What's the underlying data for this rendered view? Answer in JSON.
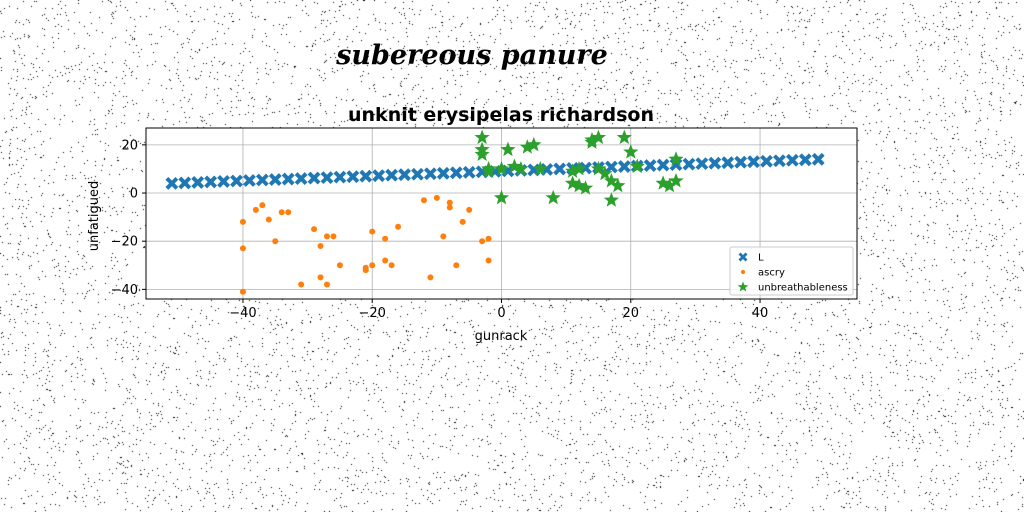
{
  "figure": {
    "suptitle": "subereous panure",
    "noise_color": "#000000",
    "background": "#ffffff"
  },
  "chart_data": {
    "type": "scatter",
    "title": "unknit erysipelas richardson",
    "xlabel": "gunrack",
    "ylabel": "unfatigued",
    "xlim": [
      -55,
      55
    ],
    "ylim": [
      -44,
      27
    ],
    "xticks": [
      -40,
      -20,
      0,
      20,
      40
    ],
    "yticks": [
      -40,
      -20,
      0,
      20
    ],
    "grid": true,
    "legend_position": "lower-right",
    "series": [
      {
        "name": "L",
        "marker": "x",
        "color": "#1f77b4",
        "x": [
          -51.0,
          -49.0,
          -47.0,
          -45.0,
          -43.0,
          -41.0,
          -39.0,
          -37.0,
          -35.0,
          -33.0,
          -31.0,
          -29.0,
          -27.0,
          -25.0,
          -23.0,
          -21.0,
          -19.0,
          -17.0,
          -15.0,
          -13.0,
          -11.0,
          -9.0,
          -7.0,
          -5.0,
          -3.0,
          -1.0,
          1.0,
          3.0,
          5.0,
          7.0,
          9.0,
          11.0,
          13.0,
          15.0,
          17.0,
          19.0,
          21.0,
          23.0,
          25.0,
          27.0,
          29.0,
          31.0,
          33.0,
          35.0,
          37.0,
          39.0,
          41.0,
          43.0,
          45.0,
          47.0,
          49.0
        ],
        "y": [
          4.0,
          4.2,
          4.4,
          4.6,
          4.8,
          5.0,
          5.2,
          5.4,
          5.6,
          5.8,
          6.0,
          6.2,
          6.4,
          6.6,
          6.8,
          7.0,
          7.2,
          7.4,
          7.6,
          7.8,
          8.0,
          8.2,
          8.4,
          8.6,
          8.8,
          9.0,
          9.2,
          9.4,
          9.6,
          9.8,
          10.0,
          10.2,
          10.4,
          10.6,
          10.8,
          11.0,
          11.2,
          11.4,
          11.6,
          11.8,
          12.0,
          12.2,
          12.4,
          12.6,
          12.8,
          13.0,
          13.2,
          13.4,
          13.6,
          13.8,
          14.0
        ]
      },
      {
        "name": "ascry",
        "marker": "o",
        "color": "#ff7f0e",
        "x": [
          -40,
          -40,
          -40,
          -38,
          -37,
          -36,
          -35,
          -34,
          -33,
          -31,
          -29,
          -28,
          -28,
          -27,
          -27,
          -26,
          -25,
          -21,
          -21,
          -20,
          -20,
          -18,
          -18,
          -17,
          -16,
          -12,
          -11,
          -10,
          -9,
          -8,
          -8,
          -7,
          -6,
          -5,
          -3,
          -2,
          -2
        ],
        "y": [
          -41,
          -12,
          -23,
          -7,
          -5,
          -11,
          -20,
          -8,
          -8,
          -38,
          -15,
          -22,
          -35,
          -38,
          -18,
          -18,
          -30,
          -32,
          -31,
          -30,
          -16,
          -28,
          -19,
          -30,
          -14,
          -3,
          -35,
          -2,
          -18,
          -6,
          -4,
          -30,
          -12,
          -7,
          -20,
          -19,
          -28
        ]
      },
      {
        "name": "unbreathableness",
        "marker": "*",
        "color": "#2ca02c",
        "x": [
          -3,
          -3,
          -3,
          -2,
          -2,
          0,
          0,
          1,
          2,
          3,
          4,
          5,
          6,
          8,
          11,
          11,
          12,
          12,
          13,
          14,
          14,
          15,
          15,
          16,
          17,
          17,
          18,
          19,
          20,
          21,
          25,
          26,
          27,
          27
        ],
        "y": [
          23,
          18,
          16,
          10,
          9,
          -2,
          10,
          18,
          11,
          10,
          19,
          20,
          10,
          -2,
          4,
          9,
          3,
          10,
          2,
          21,
          22,
          10,
          23,
          8,
          5,
          -3,
          3,
          23,
          17,
          11,
          4,
          3,
          5,
          14
        ]
      }
    ]
  }
}
